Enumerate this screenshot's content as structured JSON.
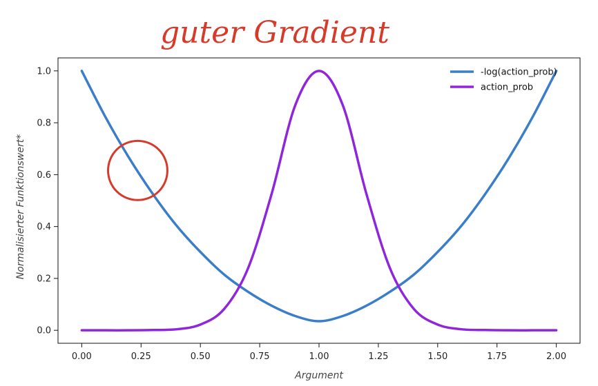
{
  "annotation": {
    "text": "guter Gradient",
    "color": "#d63a2a",
    "circle_center": [
      0.236,
      0.616
    ],
    "circle_radius_x": 0.125
  },
  "chart_data": {
    "type": "line",
    "xlabel": "Argument",
    "ylabel": "Normalisierter Funktionswert*",
    "xlim": [
      -0.1,
      2.1
    ],
    "ylim": [
      -0.05,
      1.05
    ],
    "xticks": [
      "0.00",
      "0.25",
      "0.50",
      "0.75",
      "1.00",
      "1.25",
      "1.50",
      "1.75",
      "2.00"
    ],
    "yticks": [
      "0.0",
      "0.2",
      "0.4",
      "0.6",
      "0.8",
      "1.0"
    ],
    "grid": false,
    "legend_position": "top-right",
    "x": [
      0.0,
      0.1,
      0.2,
      0.3,
      0.4,
      0.5,
      0.6,
      0.7,
      0.8,
      0.9,
      1.0,
      1.1,
      1.2,
      1.3,
      1.4,
      1.5,
      1.6,
      1.7,
      1.8,
      1.9,
      2.0
    ],
    "series": [
      {
        "name": "-log(action_prob)",
        "color": "#3a7dc9",
        "values": [
          1.0,
          0.822,
          0.664,
          0.525,
          0.403,
          0.302,
          0.215,
          0.149,
          0.095,
          0.055,
          0.035,
          0.055,
          0.095,
          0.149,
          0.215,
          0.302,
          0.403,
          0.525,
          0.664,
          0.822,
          1.0
        ]
      },
      {
        "name": "action_prob",
        "color": "#9026dc",
        "values": [
          0.0,
          0.0,
          0.0,
          0.001,
          0.004,
          0.022,
          0.082,
          0.237,
          0.525,
          0.868,
          1.0,
          0.868,
          0.525,
          0.237,
          0.082,
          0.022,
          0.004,
          0.001,
          0.0,
          0.0,
          0.0
        ]
      }
    ]
  }
}
